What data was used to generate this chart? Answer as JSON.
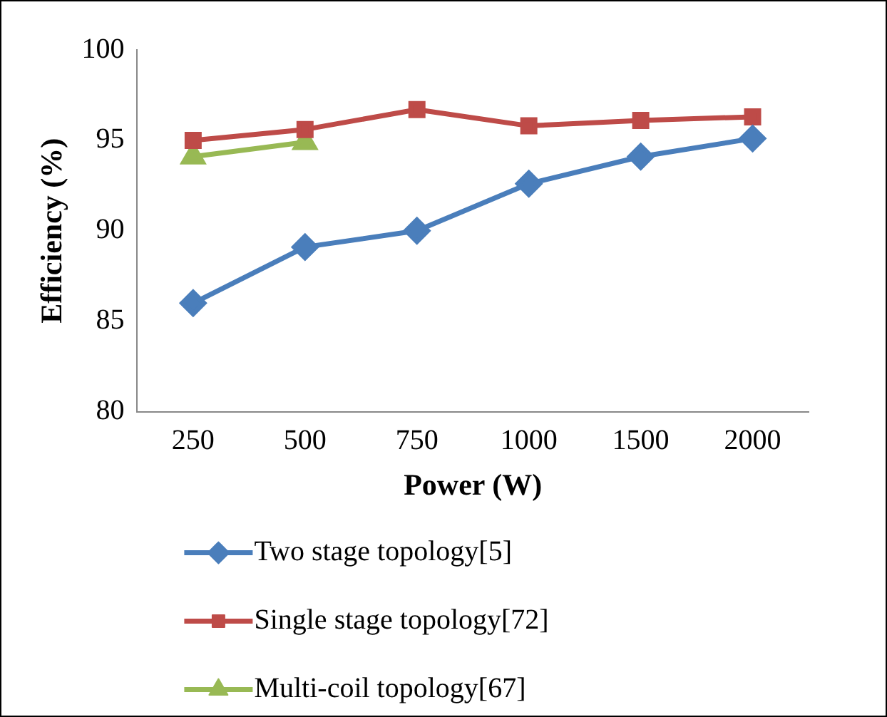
{
  "chart_data": {
    "type": "line",
    "xlabel": "Power (W)",
    "ylabel": "Efficiency (%)",
    "categories": [
      "250",
      "500",
      "750",
      "1000",
      "1500",
      "2000"
    ],
    "ylim": [
      80,
      100
    ],
    "yticks": [
      80,
      85,
      90,
      95,
      100
    ],
    "grid": false,
    "legend": "bottom",
    "series": [
      {
        "name": "Two stage topology[5]",
        "color": "#4a7ebb",
        "marker": "diamond",
        "values": [
          86,
          89.1,
          90,
          92.6,
          94.1,
          95.1
        ]
      },
      {
        "name": "Single stage topology[72]",
        "color": "#be4b48",
        "marker": "square",
        "values": [
          95,
          95.6,
          96.7,
          95.8,
          96.1,
          96.3
        ]
      },
      {
        "name": "Multi-coil topology[67]",
        "color": "#98b954",
        "marker": "triangle",
        "values": [
          94.1,
          94.9,
          null,
          null,
          null,
          null
        ]
      }
    ]
  }
}
